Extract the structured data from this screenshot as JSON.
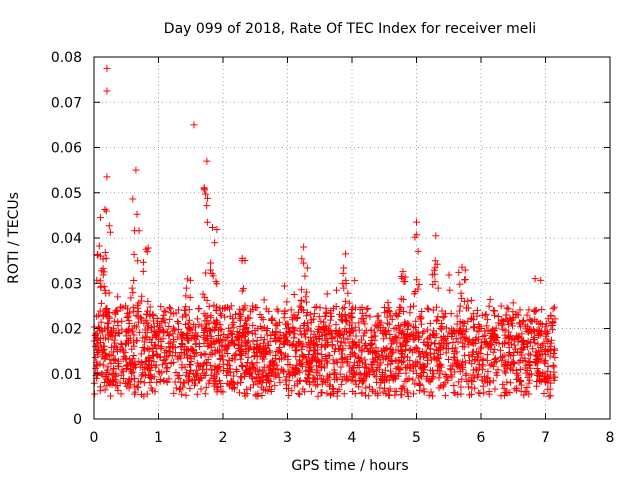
{
  "chart_data": {
    "type": "scatter",
    "title": "Day 099 of 2018, Rate Of TEC Index for receiver meli",
    "xlabel": "GPS time / hours",
    "ylabel": "ROTI / TECUs",
    "xlim": [
      0,
      8
    ],
    "ylim": [
      0,
      0.08
    ],
    "x_ticks": [
      "0",
      "1",
      "2",
      "3",
      "4",
      "5",
      "6",
      "7",
      "8"
    ],
    "y_ticks": [
      "0",
      "0.01",
      "0.02",
      "0.03",
      "0.04",
      "0.05",
      "0.06",
      "0.07",
      "0.08"
    ],
    "grid": true,
    "marker": "+",
    "series": [
      {
        "name": "ROTI",
        "color": "#ff0000",
        "x_range": [
          0,
          7.15
        ],
        "typical_range": [
          0.005,
          0.025
        ],
        "notable_points": [
          {
            "x": 0.2,
            "y": 0.0775
          },
          {
            "x": 0.2,
            "y": 0.0725
          },
          {
            "x": 1.55,
            "y": 0.065
          },
          {
            "x": 0.65,
            "y": 0.055
          },
          {
            "x": 1.75,
            "y": 0.057
          },
          {
            "x": 0.2,
            "y": 0.0535
          },
          {
            "x": 5.0,
            "y": 0.0435
          },
          {
            "x": 5.3,
            "y": 0.0405
          },
          {
            "x": 3.25,
            "y": 0.038
          },
          {
            "x": 0.1,
            "y": 0.0445
          },
          {
            "x": 3.9,
            "y": 0.0365
          }
        ]
      }
    ]
  }
}
